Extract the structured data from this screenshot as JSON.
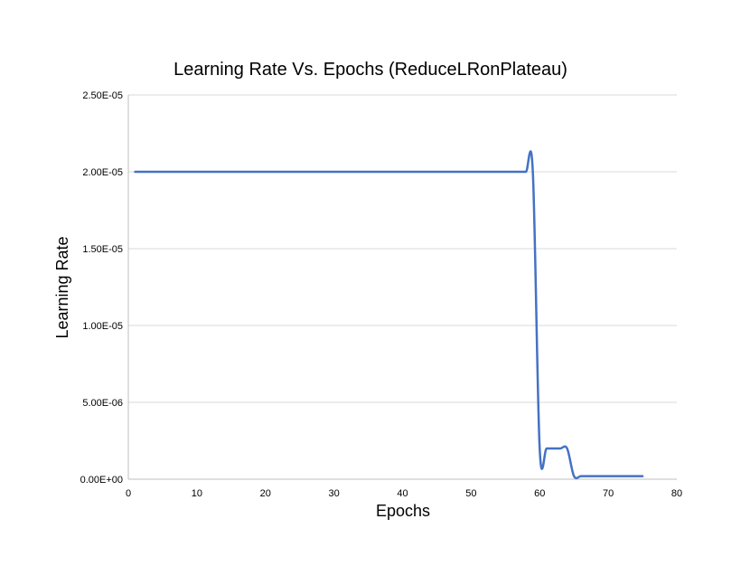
{
  "chart_data": {
    "type": "line",
    "title": "Learning Rate Vs. Epochs (ReduceLRonPlateau)",
    "xlabel": "Epochs",
    "ylabel": "Learning Rate",
    "xlim": [
      0,
      80
    ],
    "ylim": [
      0,
      2.5e-05
    ],
    "x_ticks": [
      0,
      10,
      20,
      30,
      40,
      50,
      60,
      70,
      80
    ],
    "x_tick_labels": [
      "0",
      "10",
      "20",
      "30",
      "40",
      "50",
      "60",
      "70",
      "80"
    ],
    "y_ticks": [
      0,
      5e-06,
      1e-05,
      1.5e-05,
      2e-05,
      2.5e-05
    ],
    "y_tick_labels": [
      "0.00E+00",
      "5.00E-06",
      "1.00E-05",
      "1.50E-05",
      "2.00E-05",
      "2.50E-05"
    ],
    "grid": "horizontal",
    "series": [
      {
        "color": "#4472c4",
        "x": [
          1,
          2,
          3,
          4,
          5,
          6,
          7,
          8,
          9,
          10,
          11,
          12,
          13,
          14,
          15,
          16,
          17,
          18,
          19,
          20,
          21,
          22,
          23,
          24,
          25,
          26,
          27,
          28,
          29,
          30,
          31,
          32,
          33,
          34,
          35,
          36,
          37,
          38,
          39,
          40,
          41,
          42,
          43,
          44,
          45,
          46,
          47,
          48,
          49,
          50,
          51,
          52,
          53,
          54,
          55,
          56,
          57,
          58,
          59,
          60,
          61,
          62,
          63,
          64,
          65,
          66,
          67,
          68,
          69,
          70,
          71,
          72,
          73,
          74,
          75
        ],
        "y": [
          2e-05,
          2e-05,
          2e-05,
          2e-05,
          2e-05,
          2e-05,
          2e-05,
          2e-05,
          2e-05,
          2e-05,
          2e-05,
          2e-05,
          2e-05,
          2e-05,
          2e-05,
          2e-05,
          2e-05,
          2e-05,
          2e-05,
          2e-05,
          2e-05,
          2e-05,
          2e-05,
          2e-05,
          2e-05,
          2e-05,
          2e-05,
          2e-05,
          2e-05,
          2e-05,
          2e-05,
          2e-05,
          2e-05,
          2e-05,
          2e-05,
          2e-05,
          2e-05,
          2e-05,
          2e-05,
          2e-05,
          2e-05,
          2e-05,
          2e-05,
          2e-05,
          2e-05,
          2e-05,
          2e-05,
          2e-05,
          2e-05,
          2e-05,
          2e-05,
          2e-05,
          2e-05,
          2e-05,
          2e-05,
          2e-05,
          2e-05,
          2e-05,
          2e-05,
          2e-06,
          2e-06,
          2e-06,
          2e-06,
          2e-06,
          2e-07,
          2e-07,
          2e-07,
          2e-07,
          2e-07,
          2e-07,
          2e-07,
          2e-07,
          2e-07,
          2e-07,
          2e-07
        ]
      }
    ]
  }
}
